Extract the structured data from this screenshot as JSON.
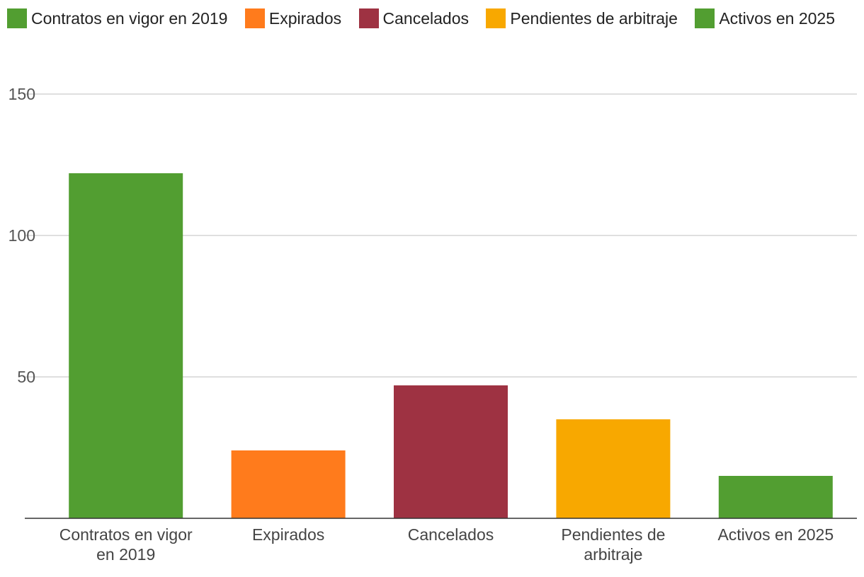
{
  "chart_data": {
    "type": "bar",
    "categories": [
      "Contratos en vigor en 2019",
      "Expirados",
      "Cancelados",
      "Pendientes de arbitraje",
      "Activos en 2025"
    ],
    "category_label_lines": [
      [
        "Contratos en vigor",
        "en 2019"
      ],
      [
        "Expirados"
      ],
      [
        "Cancelados"
      ],
      [
        "Pendientes de",
        "arbitraje"
      ],
      [
        "Activos en 2025"
      ]
    ],
    "values": [
      122,
      24,
      47,
      35,
      15
    ],
    "colors": [
      "#529e31",
      "#ff7b1c",
      "#9e3242",
      "#f8a800",
      "#529e31"
    ],
    "ylim": [
      0,
      150
    ],
    "yticks": [
      50,
      100,
      150
    ],
    "ytick_labels": [
      "50",
      "100",
      "150"
    ],
    "grid": true,
    "legend": {
      "placement": "top",
      "entries": [
        {
          "label": "Contratos en vigor en 2019",
          "color": "#529e31"
        },
        {
          "label": "Expirados",
          "color": "#ff7b1c"
        },
        {
          "label": "Cancelados",
          "color": "#9e3242"
        },
        {
          "label": "Pendientes de arbitraje",
          "color": "#f8a800"
        },
        {
          "label": "Activos en 2025",
          "color": "#529e31"
        }
      ]
    }
  }
}
